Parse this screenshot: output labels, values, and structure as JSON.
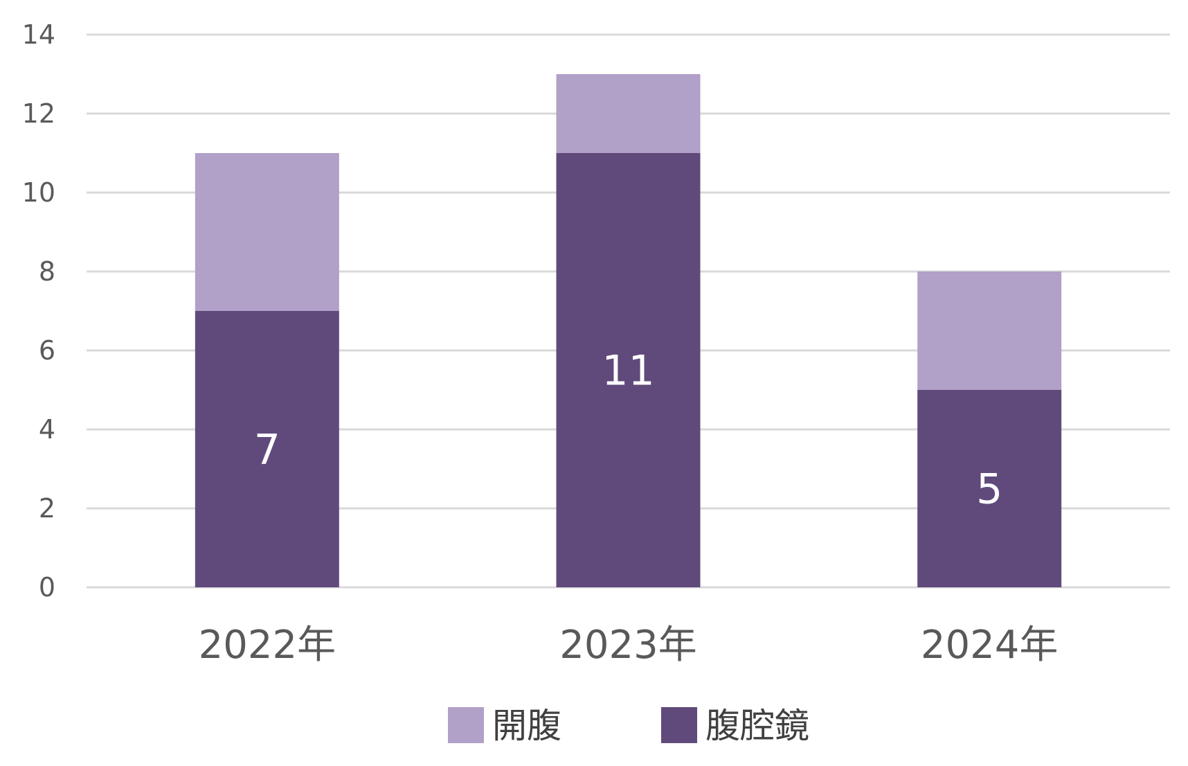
{
  "chart_data": {
    "type": "bar",
    "stacked": true,
    "title": "",
    "xlabel": "",
    "ylabel": "",
    "categories": [
      "2022年",
      "2023年",
      "2024年"
    ],
    "series": [
      {
        "name": "腹腔鏡",
        "values": [
          7,
          11,
          5
        ],
        "color": "#604a7b",
        "show_labels": true
      },
      {
        "name": "開腹",
        "values": [
          4,
          2,
          3
        ],
        "color": "#b1a0c7",
        "show_labels": false
      }
    ],
    "ylim": [
      0,
      14
    ],
    "yticks": [
      0,
      2,
      4,
      6,
      8,
      10,
      12,
      14
    ],
    "grid": true,
    "legend": {
      "position": "bottom",
      "order": [
        "開腹",
        "腹腔鏡"
      ]
    },
    "colors": {
      "grid": "#d9d9d9",
      "tick_text": "#595959",
      "data_label": "#ffffff",
      "legend_text": "#404040"
    }
  }
}
